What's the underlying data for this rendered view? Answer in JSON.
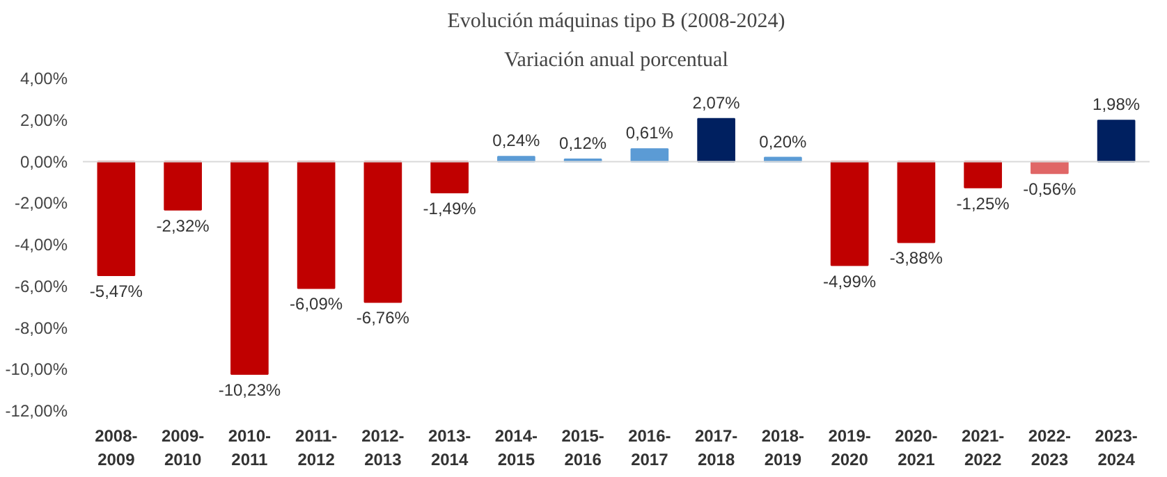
{
  "chart_data": {
    "type": "bar",
    "title": "Evolución máquinas tipo B (2008-2024)",
    "subtitle": "Variación anual porcentual",
    "categories": [
      "2008-\n2009",
      "2009-\n2010",
      "2010-\n2011",
      "2011-\n2012",
      "2012-\n2013",
      "2013-\n2014",
      "2014-\n2015",
      "2015-\n2016",
      "2016-\n2017",
      "2017-\n2018",
      "2018-\n2019",
      "2019-\n2020",
      "2020-\n2021",
      "2021-\n2022",
      "2022-\n2023",
      "2023-\n2024"
    ],
    "values": [
      -5.47,
      -2.32,
      -10.23,
      -6.09,
      -6.76,
      -1.49,
      0.24,
      0.12,
      0.61,
      2.07,
      0.2,
      -4.99,
      -3.88,
      -1.25,
      -0.56,
      1.98
    ],
    "colors": [
      "#c00000",
      "#c00000",
      "#c00000",
      "#c00000",
      "#c00000",
      "#c00000",
      "#5b9bd5",
      "#5b9bd5",
      "#5b9bd5",
      "#002060",
      "#5b9bd5",
      "#c00000",
      "#c00000",
      "#c00000",
      "#e06666",
      "#002060"
    ],
    "value_labels": [
      "-5,47%",
      "-2,32%",
      "-10,23%",
      "-6,09%",
      "-6,76%",
      "-1,49%",
      "0,24%",
      "0,12%",
      "0,61%",
      "2,07%",
      "0,20%",
      "-4,99%",
      "-3,88%",
      "-1,25%",
      "-0,56%",
      "1,98%"
    ],
    "ylim": [
      -12,
      4
    ],
    "yticks": [
      {
        "value": -12,
        "label": "-12,00%"
      },
      {
        "value": -10,
        "label": "-10,00%"
      },
      {
        "value": -8,
        "label": "-8,00%"
      },
      {
        "value": -6,
        "label": "-6,00%"
      },
      {
        "value": -4,
        "label": "-4,00%"
      },
      {
        "value": -2,
        "label": "-2,00%"
      },
      {
        "value": 0,
        "label": "0,00%"
      },
      {
        "value": 2,
        "label": "2,00%"
      },
      {
        "value": 4,
        "label": "4,00%"
      }
    ],
    "ref_lines": [
      {
        "axis": "y",
        "value": 0,
        "color": "#d9d9d9"
      }
    ],
    "grid": false
  }
}
